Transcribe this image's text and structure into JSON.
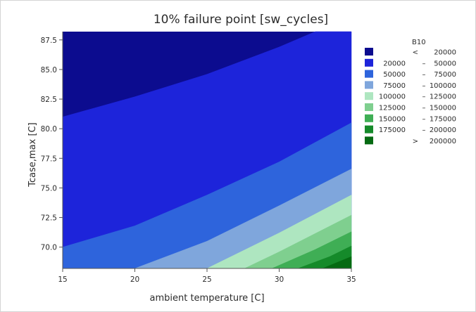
{
  "chart_data": {
    "type": "contour",
    "title": "10% failure point [sw_cycles]",
    "xlabel": "ambient temperature [C]",
    "ylabel": "Tcase,max [C]",
    "xlim": [
      15,
      35
    ],
    "ylim": [
      68.2,
      88.2
    ],
    "x_ticks": [
      15,
      20,
      25,
      30,
      35
    ],
    "y_ticks": [
      70.0,
      72.5,
      75.0,
      77.5,
      80.0,
      82.5,
      85.0,
      87.5
    ],
    "x_tick_labels": [
      "15",
      "20",
      "25",
      "30",
      "35"
    ],
    "y_tick_labels": [
      "70.0",
      "72.5",
      "75.0",
      "77.5",
      "80.0",
      "82.5",
      "85.0",
      "87.5"
    ],
    "legend": {
      "title": "B10",
      "position": "right",
      "levels": [
        {
          "low": "<",
          "high": "20000",
          "color": "#0c0c8f"
        },
        {
          "low": "20000",
          "sep": "–",
          "high": "50000",
          "color": "#1d24da"
        },
        {
          "low": "50000",
          "sep": "–",
          "high": "75000",
          "color": "#2e64dc"
        },
        {
          "low": "75000",
          "sep": "–",
          "high": "100000",
          "color": "#7fa6dc"
        },
        {
          "low": "100000",
          "sep": "–",
          "high": "125000",
          "color": "#aee6c0"
        },
        {
          "low": "125000",
          "sep": "–",
          "high": "150000",
          "color": "#7fcf8f"
        },
        {
          "low": "150000",
          "sep": "–",
          "high": "175000",
          "color": "#3fae55"
        },
        {
          "low": "175000",
          "sep": "–",
          "high": "200000",
          "color": "#158a2a"
        },
        {
          "low": ">",
          "high": "200000",
          "color": "#056a12"
        }
      ]
    },
    "contour_boundaries": [
      {
        "level": 20000,
        "points": [
          [
            15,
            81.0
          ],
          [
            20,
            82.7
          ],
          [
            25,
            84.6
          ],
          [
            30,
            86.9
          ],
          [
            32.5,
            88.2
          ]
        ]
      },
      {
        "level": 50000,
        "points": [
          [
            15,
            70.0
          ],
          [
            20,
            71.8
          ],
          [
            25,
            74.4
          ],
          [
            30,
            77.2
          ],
          [
            35,
            80.5
          ]
        ]
      },
      {
        "level": 75000,
        "points": [
          [
            20,
            68.2
          ],
          [
            25,
            70.5
          ],
          [
            30,
            73.5
          ],
          [
            35,
            76.6
          ]
        ]
      },
      {
        "level": 100000,
        "points": [
          [
            25,
            68.2
          ],
          [
            30,
            71.2
          ],
          [
            35,
            74.4
          ]
        ]
      },
      {
        "level": 125000,
        "points": [
          [
            27.6,
            68.2
          ],
          [
            30,
            69.6
          ],
          [
            35,
            72.7
          ]
        ]
      },
      {
        "level": 150000,
        "points": [
          [
            29.5,
            68.2
          ],
          [
            32.5,
            69.8
          ],
          [
            35,
            71.3
          ]
        ]
      },
      {
        "level": 175000,
        "points": [
          [
            31.3,
            68.2
          ],
          [
            33.5,
            69.2
          ],
          [
            35,
            70.1
          ]
        ]
      },
      {
        "level": 200000,
        "points": [
          [
            33.0,
            68.2
          ],
          [
            35,
            69.2
          ]
        ]
      }
    ]
  }
}
